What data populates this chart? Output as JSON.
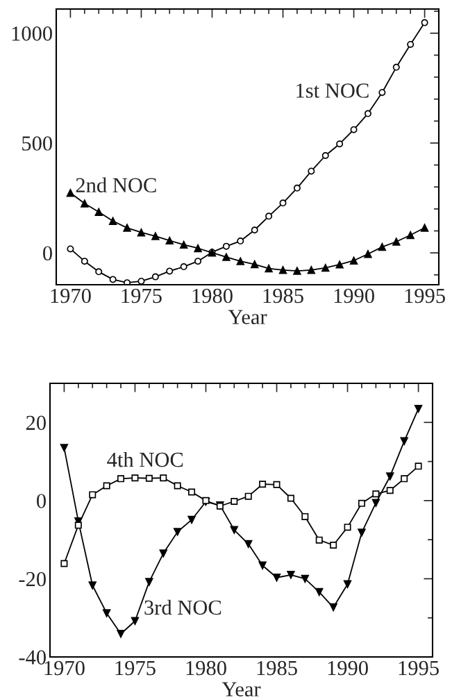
{
  "chart_data": [
    {
      "type": "line",
      "xlabel": "Year",
      "x": [
        1970,
        1971,
        1972,
        1973,
        1974,
        1975,
        1976,
        1977,
        1978,
        1979,
        1980,
        1981,
        1982,
        1983,
        1984,
        1985,
        1986,
        1987,
        1988,
        1989,
        1990,
        1991,
        1992,
        1993,
        1994,
        1995
      ],
      "xlim": [
        1969,
        1996
      ],
      "xticks": [
        1970,
        1975,
        1980,
        1985,
        1990,
        1995
      ],
      "ylim": [
        -145,
        1110
      ],
      "yticks": [
        0,
        500,
        1000
      ],
      "grid": false,
      "legend": false,
      "line_style": "solid",
      "series": [
        {
          "name": "1st NOC",
          "color": "#000000",
          "marker": "circle",
          "values": [
            18,
            -38,
            -86,
            -121,
            -136,
            -129,
            -109,
            -83,
            -63,
            -38,
            3,
            30,
            54,
            104,
            167,
            227,
            295,
            372,
            443,
            496,
            561,
            634,
            730,
            845,
            949,
            1048
          ]
        },
        {
          "name": "2nd NOC",
          "color": "#000000",
          "marker": "triangle",
          "values": [
            273,
            225,
            186,
            145,
            114,
            93,
            76,
            56,
            37,
            21,
            1,
            -19,
            -38,
            -52,
            -71,
            -78,
            -82,
            -78,
            -68,
            -53,
            -35,
            -5,
            27,
            51,
            81,
            114
          ]
        }
      ]
    },
    {
      "type": "line",
      "xlabel": "Year",
      "x": [
        1970,
        1971,
        1972,
        1973,
        1974,
        1975,
        1976,
        1977,
        1978,
        1979,
        1980,
        1981,
        1982,
        1983,
        1984,
        1985,
        1986,
        1987,
        1988,
        1989,
        1990,
        1991,
        1992,
        1993,
        1994,
        1995
      ],
      "xlim": [
        1969,
        1996
      ],
      "xticks": [
        1970,
        1975,
        1980,
        1985,
        1990,
        1995
      ],
      "ylim": [
        -40,
        30
      ],
      "yticks": [
        -40,
        -20,
        0,
        20
      ],
      "grid": false,
      "legend": false,
      "line_style": "solid",
      "series": [
        {
          "name": "3rd NOC",
          "color": "#000000",
          "marker": "triangle_down",
          "values": [
            13.5,
            -5.3,
            -21.7,
            -28.8,
            -34.1,
            -30.8,
            -20.8,
            -13.5,
            -8.0,
            -4.9,
            -0.3,
            -1.2,
            -7.5,
            -11.1,
            -16.6,
            -19.7,
            -19.0,
            -20.0,
            -23.4,
            -27.3,
            -21.4,
            -8.2,
            -0.6,
            6.2,
            15.2,
            23.5
          ]
        },
        {
          "name": "4th NOC",
          "color": "#000000",
          "marker": "square",
          "values": [
            -16.1,
            -6.3,
            1.5,
            3.8,
            5.6,
            5.8,
            5.7,
            5.8,
            3.8,
            2.2,
            0,
            -1.4,
            -0.2,
            1.1,
            4.2,
            4.1,
            0.6,
            -4.1,
            -10.1,
            -11.4,
            -6.8,
            -0.7,
            1.7,
            2.6,
            5.6,
            8.8
          ]
        }
      ]
    }
  ]
}
